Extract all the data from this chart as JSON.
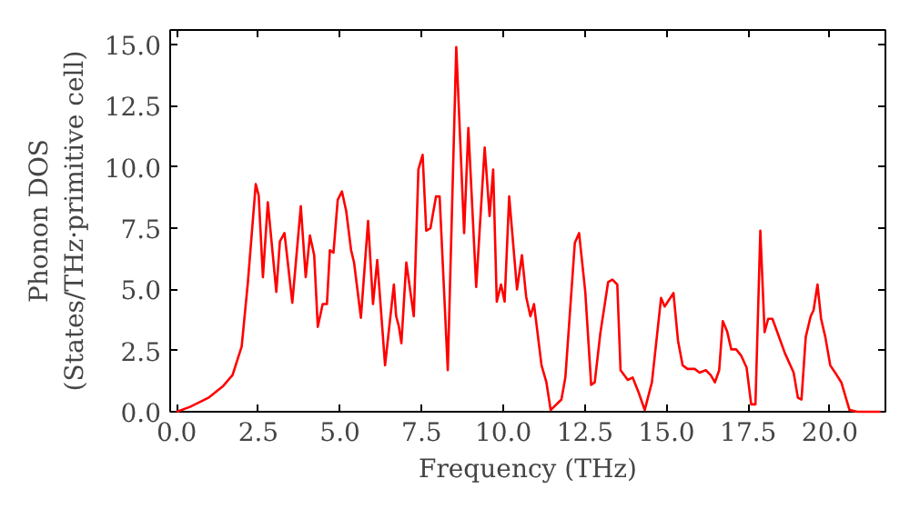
{
  "chart_data": {
    "type": "line",
    "xlabel": "Frequency (THz)",
    "ylabel": "Phonon DOS\n(States/THz·primitive cell)",
    "xlim": [
      -0.2,
      21.7
    ],
    "ylim": [
      0,
      15.6
    ],
    "xticks": [
      {
        "value": 0,
        "label": "0.0"
      },
      {
        "value": 2.5,
        "label": "2.5"
      },
      {
        "value": 5,
        "label": "5.0"
      },
      {
        "value": 7.5,
        "label": "7.5"
      },
      {
        "value": 10,
        "label": "10.0"
      },
      {
        "value": 12.5,
        "label": "12.5"
      },
      {
        "value": 15,
        "label": "15.0"
      },
      {
        "value": 17.5,
        "label": "17.5"
      },
      {
        "value": 20,
        "label": "20.0"
      }
    ],
    "yticks": [
      {
        "value": 0,
        "label": "0.0"
      },
      {
        "value": 2.5,
        "label": "2.5"
      },
      {
        "value": 5,
        "label": "5.0"
      },
      {
        "value": 7.5,
        "label": "7.5"
      },
      {
        "value": 10,
        "label": "10.0"
      },
      {
        "value": 12.5,
        "label": "12.5"
      },
      {
        "value": 15,
        "label": "15.0"
      }
    ],
    "grid": false,
    "marker": "none",
    "line_style": "solid",
    "series": [
      {
        "color": "#ff0000",
        "x": [
          0,
          0.41,
          0.97,
          1.43,
          1.71,
          1.99,
          2.18,
          2.42,
          2.51,
          2.64,
          2.79,
          3.05,
          3.16,
          3.3,
          3.54,
          3.8,
          3.95,
          4.08,
          4.21,
          4.32,
          4.47,
          4.6,
          4.69,
          4.8,
          4.93,
          5.06,
          5.19,
          5.34,
          5.43,
          5.64,
          5.86,
          6.01,
          6.14,
          6.38,
          6.65,
          6.72,
          6.8,
          6.88,
          7.03,
          7.26,
          7.4,
          7.53,
          7.64,
          7.77,
          7.94,
          8.05,
          8.3,
          8.56,
          8.8,
          8.93,
          9.17,
          9.43,
          9.58,
          9.69,
          9.8,
          9.93,
          10.04,
          10.18,
          10.42,
          10.57,
          10.7,
          10.83,
          10.94,
          11.17,
          11.32,
          11.45,
          11.78,
          11.9,
          12.19,
          12.32,
          12.51,
          12.69,
          12.8,
          12.97,
          13.21,
          13.34,
          13.49,
          13.59,
          13.81,
          13.96,
          14.14,
          14.33,
          14.55,
          14.83,
          14.94,
          15.21,
          15.35,
          15.49,
          15.64,
          15.86,
          16.01,
          16.2,
          16.35,
          16.48,
          16.61,
          16.72,
          16.85,
          16.98,
          17.13,
          17.28,
          17.45,
          17.59,
          17.72,
          17.87,
          18.0,
          18.11,
          18.24,
          18.39,
          18.62,
          18.89,
          19.02,
          19.13,
          19.26,
          19.41,
          19.5,
          19.62,
          19.73,
          19.86,
          20.01,
          20.16,
          20.35,
          20.6,
          20.84,
          21.55
        ],
        "values": [
          0,
          0.2,
          0.57,
          1.06,
          1.5,
          2.67,
          5.3,
          9.3,
          8.85,
          5.5,
          8.56,
          4.9,
          6.96,
          7.3,
          4.45,
          8.4,
          5.5,
          7.2,
          6.4,
          3.47,
          4.4,
          4.4,
          6.6,
          6.5,
          8.66,
          9.0,
          8.2,
          6.6,
          6.1,
          3.84,
          7.8,
          4.4,
          6.2,
          1.9,
          5.2,
          3.9,
          3.5,
          2.8,
          6.1,
          3.9,
          9.9,
          10.5,
          7.4,
          7.5,
          8.8,
          8.8,
          1.7,
          14.9,
          7.3,
          11.6,
          5.1,
          10.8,
          8.0,
          9.9,
          4.5,
          5.2,
          4.5,
          8.8,
          5.0,
          6.4,
          4.7,
          3.9,
          4.4,
          1.9,
          1.2,
          0.07,
          0.5,
          1.4,
          6.9,
          7.3,
          4.9,
          1.1,
          1.2,
          3.2,
          5.3,
          5.4,
          5.2,
          1.7,
          1.3,
          1.4,
          0.8,
          0.07,
          1.2,
          4.65,
          4.3,
          4.85,
          2.9,
          1.9,
          1.75,
          1.75,
          1.6,
          1.7,
          1.5,
          1.2,
          1.7,
          3.7,
          3.3,
          2.55,
          2.55,
          2.3,
          1.8,
          0.3,
          0.3,
          7.4,
          3.25,
          3.8,
          3.8,
          3.25,
          2.4,
          1.6,
          0.57,
          0.5,
          3.05,
          3.9,
          4.15,
          5.2,
          3.8,
          3.05,
          1.9,
          1.6,
          1.2,
          0.07,
          0,
          0
        ]
      }
    ]
  }
}
